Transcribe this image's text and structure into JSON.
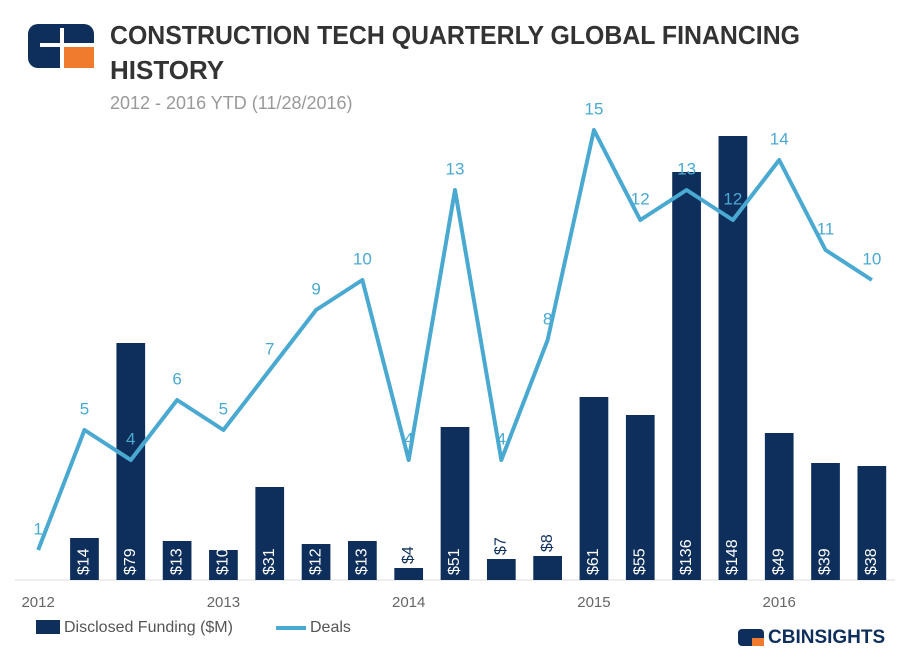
{
  "chart_data": {
    "type": "bar-line",
    "title": "CONSTRUCTION TECH QUARTERLY GLOBAL FINANCING",
    "title_line2": "HISTORY",
    "subtitle": "2012 - 2016 YTD (11/28/2016)",
    "brand": "CBINSIGHTS",
    "categories": [
      "2012",
      null,
      null,
      null,
      "2013",
      null,
      null,
      null,
      "2014",
      null,
      null,
      null,
      "2015",
      null,
      null,
      null,
      "2016",
      null,
      null
    ],
    "ylim": [
      0,
      160
    ],
    "y2lim": [
      0,
      16
    ],
    "legend": "bottom-left",
    "series": [
      {
        "name": "Disclosed Funding ($M)",
        "color": "#0e2f5c",
        "values": [
          null,
          14,
          79,
          13,
          10,
          31,
          12,
          13,
          4,
          51,
          7,
          8,
          61,
          55,
          136,
          148,
          49,
          39,
          38
        ],
        "value_labels": [
          null,
          "$14",
          "$79",
          "$13",
          "$10",
          "$31",
          "$12",
          "$13",
          "$4",
          "$51",
          "$7",
          "$8",
          "$61",
          "$55",
          "$136",
          "$148",
          "$49",
          "$39",
          "$38"
        ]
      },
      {
        "name": "Deals",
        "color": "#4aa9d1",
        "axis": "y2",
        "values": [
          1,
          5,
          4,
          6,
          5,
          7,
          9,
          10,
          4,
          13,
          4,
          8,
          15,
          12,
          13,
          12,
          14,
          11,
          10
        ]
      }
    ]
  }
}
